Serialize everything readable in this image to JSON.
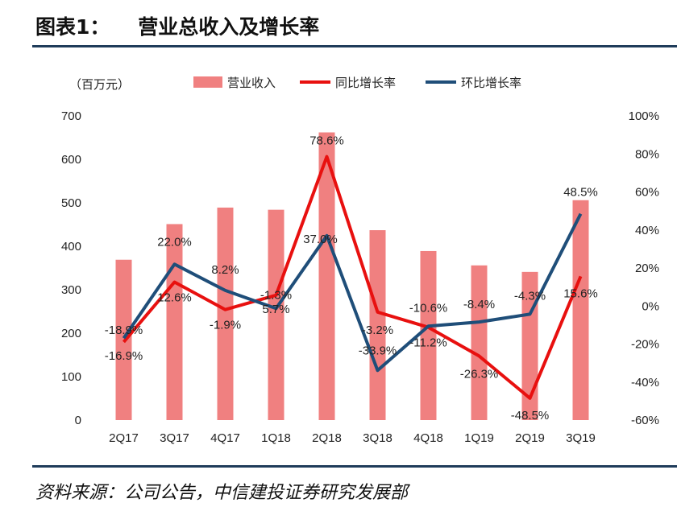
{
  "header": {
    "title": "图表1：    营业总收入及增长率"
  },
  "footer": {
    "source": "资料来源：公司公告，中信建投证券研究发展部"
  },
  "chart_data": {
    "type": "bar",
    "categories": [
      "2Q17",
      "3Q17",
      "4Q17",
      "1Q18",
      "2Q18",
      "3Q18",
      "4Q18",
      "1Q19",
      "2Q19",
      "3Q19"
    ],
    "unit_label": "（百万元）",
    "y_left": {
      "lim": [
        0,
        700
      ],
      "ticks": [
        "0",
        "100",
        "200",
        "300",
        "400",
        "500",
        "600",
        "700"
      ]
    },
    "y_right": {
      "lim": [
        -60,
        100
      ],
      "ticks": [
        "-60%",
        "-40%",
        "-20%",
        "0%",
        "20%",
        "40%",
        "60%",
        "80%",
        "100%"
      ]
    },
    "series": [
      {
        "name": "营业收入",
        "kind": "bar",
        "axis": "left",
        "color": "#f08080",
        "values": [
          369,
          451,
          489,
          484,
          662,
          437,
          389,
          356,
          341,
          506
        ]
      },
      {
        "name": "同比增长率",
        "kind": "line",
        "axis": "right",
        "color": "#e8100f",
        "values": [
          -18.9,
          12.6,
          -1.9,
          5.7,
          78.6,
          -3.2,
          -11.2,
          -26.3,
          -48.5,
          15.6
        ],
        "labels": [
          "-18.9%",
          "12.6%",
          "-1.9%",
          "5.7%",
          "78.6%",
          "-3.2%",
          "-11.2%",
          "-26.3%",
          "-48.5%",
          "15.6%"
        ]
      },
      {
        "name": "环比增长率",
        "kind": "line",
        "axis": "right",
        "color": "#1f4e79",
        "values": [
          -16.9,
          22.0,
          8.2,
          -1.3,
          37.0,
          -33.9,
          -10.6,
          -8.4,
          -4.3,
          48.5
        ],
        "labels": [
          "-16.9%",
          "22.0%",
          "8.2%",
          "-1.3%",
          "37.0%",
          "-33.9%",
          "-10.6%",
          "-8.4%",
          "-4.3%",
          "48.5%"
        ]
      }
    ],
    "legend_position": "top",
    "grid": false
  }
}
